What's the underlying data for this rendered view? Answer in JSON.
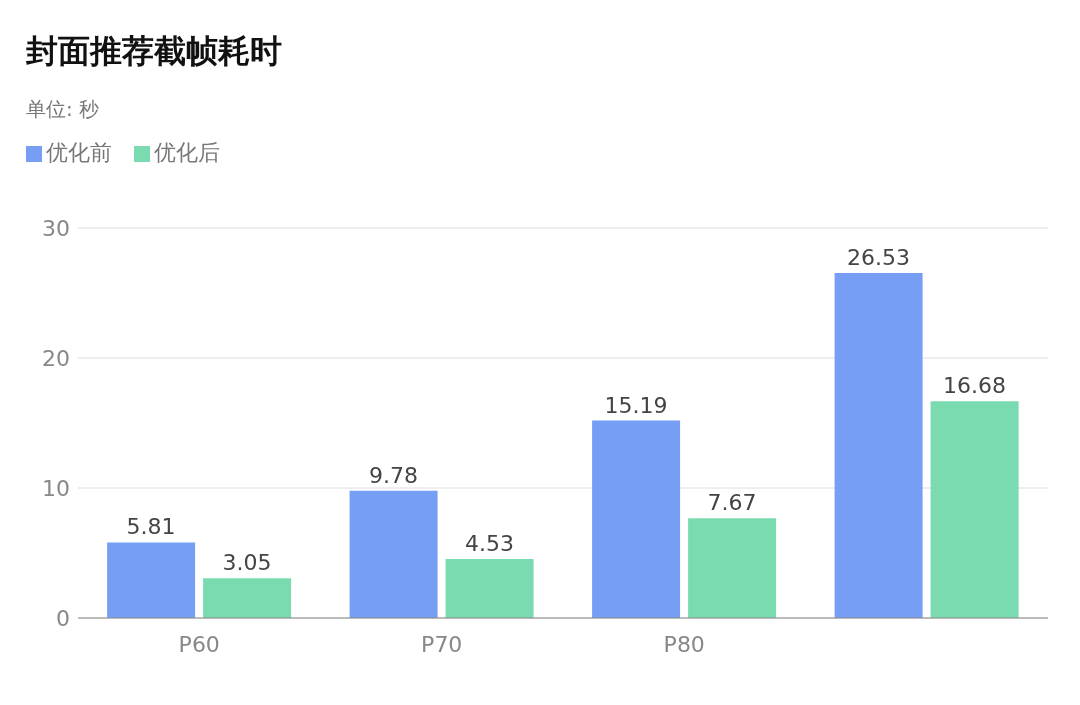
{
  "chart_data": {
    "type": "bar",
    "title": "封面推荐截帧耗时",
    "subtitle": "单位: 秒",
    "categories": [
      "P60",
      "P70",
      "P80",
      null
    ],
    "series": [
      {
        "name": "优化前",
        "color": "#779ef5",
        "values": [
          5.81,
          9.78,
          15.19,
          26.53
        ]
      },
      {
        "name": "优化后",
        "color": "#7adbb0",
        "values": [
          3.05,
          4.53,
          7.67,
          16.68
        ]
      }
    ],
    "ylim": [
      0,
      30
    ],
    "yticks": [
      0,
      10,
      20,
      30
    ],
    "grid": "y",
    "legend": "top left",
    "data_labels": true
  }
}
